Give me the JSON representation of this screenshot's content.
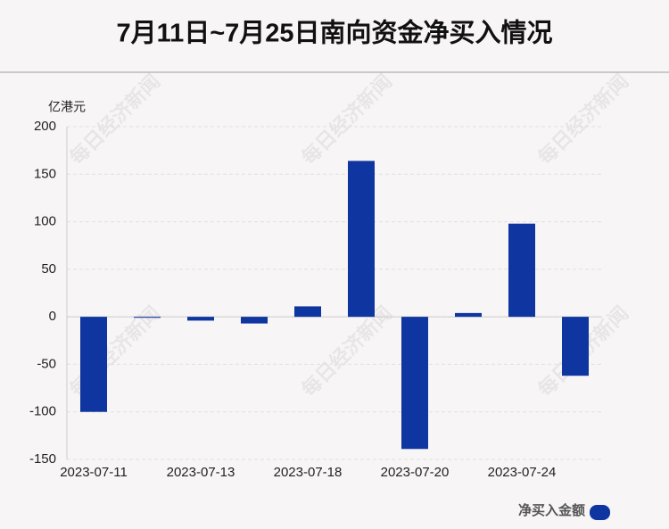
{
  "chart_data": {
    "type": "bar",
    "title": "7月11日~7月25日南向资金净买入情况",
    "y_label": "亿港元",
    "watermark": "每日经济新闻",
    "categories": [
      "2023-07-11",
      null,
      "2023-07-13",
      null,
      "2023-07-18",
      null,
      "2023-07-20",
      null,
      "2023-07-24",
      null
    ],
    "series": [
      {
        "name": "净买入金额",
        "color": "#0e35a0",
        "values": [
          -100,
          -1,
          -4,
          -7,
          11,
          164,
          -139,
          4,
          98,
          -62
        ]
      }
    ],
    "ylim": [
      -150,
      200
    ],
    "yticks": [
      -150,
      -100,
      -50,
      0,
      50,
      100,
      150,
      200
    ],
    "grid": true,
    "legend": "bottom-right"
  }
}
